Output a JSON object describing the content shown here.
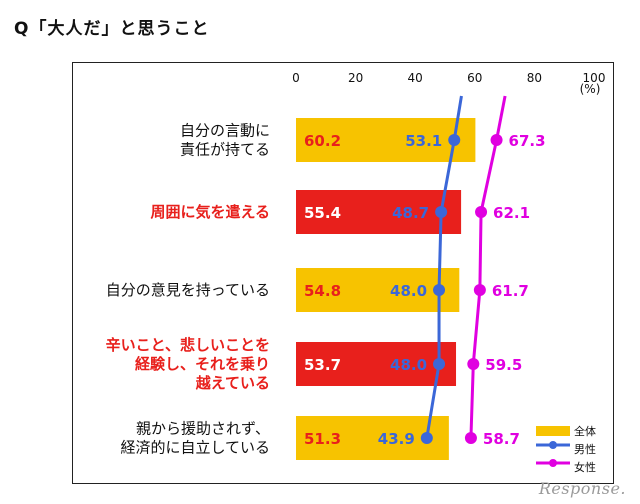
{
  "page": {
    "title": "Q「大人だ」と思うこと",
    "watermark": "Response."
  },
  "colors": {
    "overall_bar_yellow": "#f7c300",
    "overall_bar_red": "#e8201c",
    "overall_value_on_yellow": "#e8201c",
    "overall_value_on_red": "#ffffff",
    "male_line": "#3b67d8",
    "female_line": "#e000e0",
    "highlight_label": "#e8201c"
  },
  "chart_data": {
    "type": "bar",
    "orientation": "horizontal",
    "x_unit": "(%)",
    "xlim": [
      0,
      100
    ],
    "x_ticks": [
      0,
      20,
      40,
      60,
      80,
      100
    ],
    "categories": [
      {
        "lines": [
          "自分の言動に",
          "責任が持てる"
        ],
        "highlight": false
      },
      {
        "lines": [
          "周囲に気を遣える"
        ],
        "highlight": true
      },
      {
        "lines": [
          "自分の意見を持っている"
        ],
        "highlight": false
      },
      {
        "lines": [
          "辛いこと、悲しいことを",
          "経験し、それを乗り",
          "越えている"
        ],
        "highlight": true
      },
      {
        "lines": [
          "親から援助されず、",
          "経済的に自立している"
        ],
        "highlight": false
      }
    ],
    "series": [
      {
        "name": "全体",
        "kind": "bar",
        "values": [
          60.2,
          55.4,
          54.8,
          53.7,
          51.3
        ],
        "value_labels": [
          "60.2",
          "55.4",
          "54.8",
          "53.7",
          "51.3"
        ]
      },
      {
        "name": "男性",
        "kind": "line",
        "values": [
          53.1,
          48.7,
          48.0,
          48.0,
          43.9
        ],
        "value_labels": [
          "53.1",
          "48.7",
          "48.0",
          "48.0",
          "43.9"
        ]
      },
      {
        "name": "女性",
        "kind": "line",
        "values": [
          67.3,
          62.1,
          61.7,
          59.5,
          58.7
        ],
        "value_labels": [
          "67.3",
          "62.1",
          "61.7",
          "59.5",
          "58.7"
        ]
      }
    ],
    "legend": {
      "position": "bottom-right",
      "labels": [
        "全体",
        "男性",
        "女性"
      ]
    },
    "grid": false
  }
}
